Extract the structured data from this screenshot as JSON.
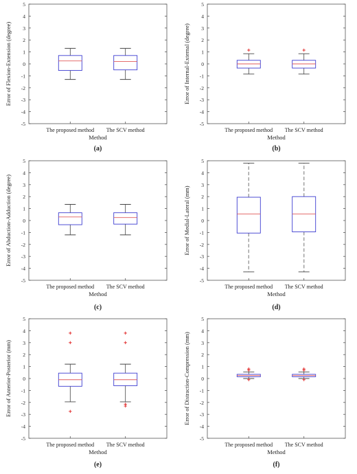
{
  "chart_data": [
    {
      "type": "box",
      "panel": "a",
      "caption": "(a)",
      "ylabel": "Error of Flexion-Extension (degree)",
      "xlabel": "Method",
      "ylim": [
        -5,
        5
      ],
      "yticks": [
        -5,
        -4,
        -3,
        -2,
        -1,
        0,
        1,
        2,
        3,
        4,
        5
      ],
      "categories": [
        "The proposed method",
        "The SCV method"
      ],
      "boxes": [
        {
          "whisker_low": -1.3,
          "q1": -0.55,
          "median": 0.25,
          "q3": 0.7,
          "whisker_high": 1.3,
          "outliers": []
        },
        {
          "whisker_low": -1.3,
          "q1": -0.5,
          "median": 0.2,
          "q3": 0.7,
          "whisker_high": 1.3,
          "outliers": []
        }
      ]
    },
    {
      "type": "box",
      "panel": "b",
      "caption": "(b)",
      "ylabel": "Error of Internal-External (degree)",
      "xlabel": "Method",
      "ylim": [
        -5,
        5
      ],
      "yticks": [
        -5,
        -4,
        -3,
        -2,
        -1,
        0,
        1,
        2,
        3,
        4,
        5
      ],
      "categories": [
        "The proposed method",
        "The SCV method"
      ],
      "boxes": [
        {
          "whisker_low": -0.85,
          "q1": -0.35,
          "median": 0.0,
          "q3": 0.3,
          "whisker_high": 0.85,
          "outliers": [
            1.15
          ]
        },
        {
          "whisker_low": -0.85,
          "q1": -0.35,
          "median": 0.0,
          "q3": 0.3,
          "whisker_high": 0.85,
          "outliers": [
            1.15
          ]
        }
      ]
    },
    {
      "type": "box",
      "panel": "c",
      "caption": "(c)",
      "ylabel": "Error of Abduction-Adduction (degree)",
      "xlabel": "Method",
      "ylim": [
        -5,
        5
      ],
      "yticks": [
        -5,
        -4,
        -3,
        -2,
        -1,
        0,
        1,
        2,
        3,
        4,
        5
      ],
      "categories": [
        "The proposed method",
        "The SCV method"
      ],
      "boxes": [
        {
          "whisker_low": -1.2,
          "q1": -0.35,
          "median": 0.3,
          "q3": 0.65,
          "whisker_high": 1.35,
          "outliers": []
        },
        {
          "whisker_low": -1.2,
          "q1": -0.3,
          "median": 0.25,
          "q3": 0.65,
          "whisker_high": 1.35,
          "outliers": []
        }
      ]
    },
    {
      "type": "box",
      "panel": "d",
      "caption": "(d)",
      "ylabel": "Error of Medial-Lateral (mm)",
      "xlabel": "Method",
      "ylim": [
        -5,
        5
      ],
      "yticks": [
        -5,
        -4,
        -3,
        -2,
        -1,
        0,
        1,
        2,
        3,
        4,
        5
      ],
      "categories": [
        "The proposed method",
        "The SCV method"
      ],
      "boxes": [
        {
          "whisker_low": -4.3,
          "q1": -1.05,
          "median": 0.55,
          "q3": 1.95,
          "whisker_high": 4.8,
          "outliers": []
        },
        {
          "whisker_low": -4.3,
          "q1": -0.95,
          "median": 0.55,
          "q3": 2.0,
          "whisker_high": 4.8,
          "outliers": []
        }
      ]
    },
    {
      "type": "box",
      "panel": "e",
      "caption": "(e)",
      "ylabel": "Error of Anterior-Posterior (mm)",
      "xlabel": "Method",
      "ylim": [
        -5,
        5
      ],
      "yticks": [
        -5,
        -4,
        -3,
        -2,
        -1,
        0,
        1,
        2,
        3,
        4,
        5
      ],
      "categories": [
        "The proposed method",
        "The SCV method"
      ],
      "boxes": [
        {
          "whisker_low": -1.95,
          "q1": -0.65,
          "median": -0.1,
          "q3": 0.45,
          "whisker_high": 1.2,
          "outliers": [
            3.8,
            3.0,
            -2.75
          ]
        },
        {
          "whisker_low": -1.95,
          "q1": -0.6,
          "median": -0.1,
          "q3": 0.45,
          "whisker_high": 1.2,
          "outliers": [
            3.8,
            3.0,
            -2.15,
            -2.3
          ]
        }
      ]
    },
    {
      "type": "box",
      "panel": "f",
      "caption": "(f)",
      "ylabel": "Error of Distraction-Compression (mm)",
      "xlabel": "Method",
      "ylim": [
        -5,
        5
      ],
      "yticks": [
        -5,
        -4,
        -3,
        -2,
        -1,
        0,
        1,
        2,
        3,
        4,
        5
      ],
      "categories": [
        "The proposed method",
        "The SCV method"
      ],
      "boxes": [
        {
          "whisker_low": 0.0,
          "q1": 0.15,
          "median": 0.25,
          "q3": 0.35,
          "whisker_high": 0.55,
          "outliers": [
            0.8,
            0.7,
            -0.1
          ]
        },
        {
          "whisker_low": 0.0,
          "q1": 0.15,
          "median": 0.25,
          "q3": 0.35,
          "whisker_high": 0.55,
          "outliers": [
            0.8,
            0.7,
            -0.1
          ]
        }
      ]
    }
  ],
  "colors": {
    "box": "#3b3bd0",
    "median": "#e05a5a",
    "whisker": "#444444",
    "dashed_whisker": "#9a9a9a",
    "outlier": "#e02020",
    "axis": "#555555",
    "text": "#222222"
  }
}
